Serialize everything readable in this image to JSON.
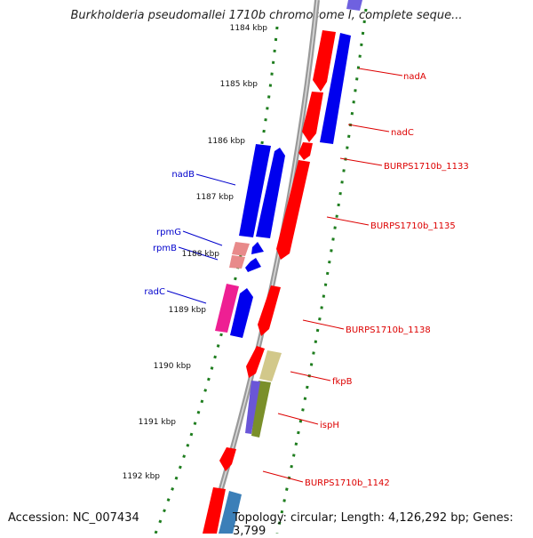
{
  "title": "Burkholderia pseudomallei 1710b chromosome I, complete seque...",
  "footer": {
    "accession": "Accession: NC_007434",
    "topology": "Topology: circular; Length: 4,126,292 bp; Genes: 3,799"
  },
  "colors": {
    "forward_red": "#ff0000",
    "forward_blue": "#0000ee",
    "reverse_red": "#ff0000",
    "label_red": "#dd0000",
    "label_blue": "#0000cc",
    "tick_green": "#1e7d1e",
    "chromosome_grey": "#8c8c8c"
  },
  "scale": {
    "labels": [
      {
        "text": "1184 kbp",
        "kbp": 1184
      },
      {
        "text": "1185 kbp",
        "kbp": 1185
      },
      {
        "text": "1186 kbp",
        "kbp": 1186
      },
      {
        "text": "1187 kbp",
        "kbp": 1187
      },
      {
        "text": "1188 kbp",
        "kbp": 1188
      },
      {
        "text": "1189 kbp",
        "kbp": 1189
      },
      {
        "text": "1190 kbp",
        "kbp": 1190
      },
      {
        "text": "1191 kbp",
        "kbp": 1191
      },
      {
        "text": "1192 kbp",
        "kbp": 1192
      }
    ]
  },
  "genes": {
    "right": [
      {
        "name": "nadA",
        "strand": "reverse"
      },
      {
        "name": "nadC",
        "strand": "reverse"
      },
      {
        "name": "BURPS1710b_1133",
        "strand": "reverse"
      },
      {
        "name": "BURPS1710b_1135",
        "strand": "reverse"
      },
      {
        "name": "BURPS1710b_1138",
        "strand": "reverse"
      },
      {
        "name": "fkpB",
        "strand": "reverse"
      },
      {
        "name": "ispH",
        "strand": "reverse"
      },
      {
        "name": "BURPS1710b_1142",
        "strand": "reverse"
      }
    ],
    "left": [
      {
        "name": "nadB",
        "strand": "forward"
      },
      {
        "name": "rpmG",
        "strand": "forward"
      },
      {
        "name": "rpmB",
        "strand": "forward"
      },
      {
        "name": "radC",
        "strand": "forward"
      }
    ]
  }
}
